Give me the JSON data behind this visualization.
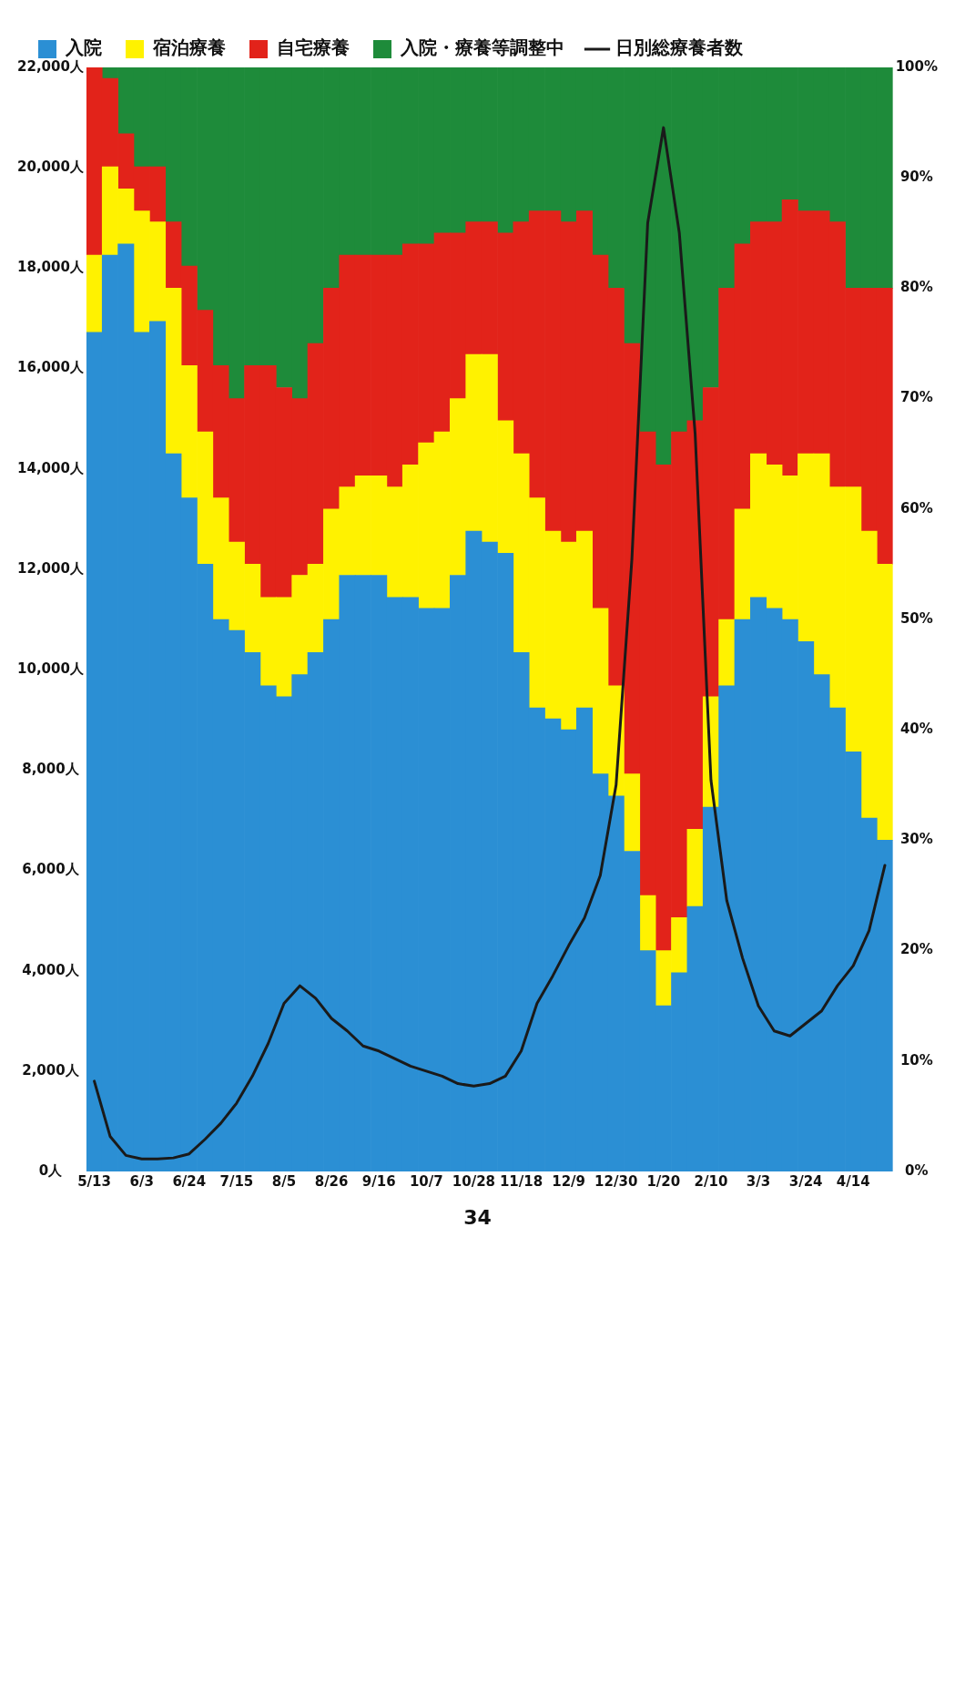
{
  "chart_data": {
    "type": "bar",
    "stacked": true,
    "legend": "top",
    "categories": [
      "5/13",
      null,
      null,
      "6/3",
      null,
      null,
      "6/24",
      null,
      null,
      "7/15",
      null,
      null,
      "8/5",
      null,
      null,
      "8/26",
      null,
      null,
      "9/16",
      null,
      null,
      "10/7",
      null,
      null,
      "10/28",
      null,
      null,
      "11/18",
      null,
      null,
      "12/9",
      null,
      null,
      "12/30",
      null,
      null,
      "1/20",
      null,
      null,
      "2/10",
      null,
      null,
      "3/3",
      null,
      null,
      "3/24",
      null,
      null,
      "4/14",
      null,
      null
    ],
    "ylim": [
      0,
      22000
    ],
    "yticks": [
      {
        "value": 0,
        "label": "0人"
      },
      {
        "value": 2000,
        "label": "2,000人"
      },
      {
        "value": 4000,
        "label": "4,000人"
      },
      {
        "value": 6000,
        "label": "6,000人"
      },
      {
        "value": 8000,
        "label": "8,000人"
      },
      {
        "value": 10000,
        "label": "10,000人"
      },
      {
        "value": 12000,
        "label": "12,000人"
      },
      {
        "value": 14000,
        "label": "14,000人"
      },
      {
        "value": 16000,
        "label": "16,000人"
      },
      {
        "value": 18000,
        "label": "18,000人"
      },
      {
        "value": 20000,
        "label": "20,000人"
      },
      {
        "value": 22000,
        "label": "22,000人"
      }
    ],
    "y2lim": [
      0,
      100
    ],
    "y2ticks": [
      {
        "value": 0,
        "label": "0%"
      },
      {
        "value": 10,
        "label": "10%"
      },
      {
        "value": 20,
        "label": "20%"
      },
      {
        "value": 30,
        "label": "30%"
      },
      {
        "value": 40,
        "label": "40%"
      },
      {
        "value": 50,
        "label": "50%"
      },
      {
        "value": 60,
        "label": "60%"
      },
      {
        "value": 70,
        "label": "70%"
      },
      {
        "value": 80,
        "label": "80%"
      },
      {
        "value": 90,
        "label": "90%"
      },
      {
        "value": 100,
        "label": "100%"
      }
    ],
    "series": [
      {
        "name": "入院",
        "color": "#2b8fd4",
        "axis": "y2",
        "values": [
          76,
          83,
          84,
          76,
          77,
          65,
          61,
          55,
          50,
          49,
          47,
          44,
          43,
          45,
          47,
          50,
          54,
          54,
          54,
          52,
          52,
          51,
          51,
          54,
          58,
          57,
          56,
          47,
          42,
          41,
          40,
          42,
          36,
          34,
          29,
          20,
          15,
          18,
          24,
          33,
          44,
          50,
          52,
          51,
          50,
          48,
          45,
          42,
          38,
          32,
          30
        ]
      },
      {
        "name": "宿泊療養",
        "color": "#fff200",
        "axis": "y2",
        "values": [
          7,
          8,
          5,
          11,
          9,
          15,
          12,
          12,
          11,
          8,
          8,
          8,
          9,
          9,
          8,
          10,
          8,
          9,
          9,
          10,
          12,
          15,
          16,
          16,
          16,
          17,
          12,
          18,
          19,
          17,
          17,
          16,
          15,
          10,
          7,
          5,
          5,
          5,
          7,
          10,
          6,
          10,
          13,
          13,
          13,
          17,
          20,
          20,
          24,
          26,
          25
        ]
      },
      {
        "name": "自宅療養",
        "color": "#e2231a",
        "axis": "y2",
        "values": [
          17,
          8,
          5,
          4,
          5,
          6,
          9,
          11,
          12,
          13,
          18,
          21,
          19,
          16,
          20,
          20,
          21,
          20,
          20,
          21,
          20,
          18,
          18,
          15,
          12,
          12,
          17,
          21,
          26,
          29,
          29,
          29,
          32,
          36,
          39,
          42,
          44,
          44,
          37,
          28,
          30,
          24,
          21,
          22,
          25,
          22,
          22,
          24,
          18,
          22,
          25
        ]
      },
      {
        "name": "入院・療養等調整中",
        "color": "#1e8b3a",
        "axis": "y2",
        "values": [
          0,
          1,
          6,
          9,
          9,
          14,
          18,
          22,
          27,
          30,
          27,
          27,
          29,
          30,
          25,
          20,
          17,
          17,
          17,
          17,
          16,
          16,
          15,
          15,
          14,
          14,
          15,
          14,
          13,
          13,
          14,
          13,
          17,
          20,
          25,
          33,
          36,
          33,
          32,
          29,
          20,
          16,
          14,
          14,
          12,
          13,
          13,
          14,
          20,
          20,
          20
        ]
      },
      {
        "name": "日別総療養者数",
        "type": "line",
        "color": "#1a1a1a",
        "values": [
          1800,
          700,
          320,
          250,
          250,
          270,
          350,
          640,
          960,
          1360,
          1900,
          2550,
          3350,
          3700,
          3450,
          3050,
          2800,
          2500,
          2400,
          2250,
          2100,
          2000,
          1900,
          1750,
          1700,
          1750,
          1900,
          2400,
          3350,
          3900,
          4500,
          5050,
          5900,
          7700,
          12200,
          18900,
          20800,
          18700,
          14700,
          7800,
          5400,
          4250,
          3300,
          2800,
          2700,
          2950,
          3200,
          3700,
          4100,
          4800,
          6100
        ]
      }
    ],
    "annotations": [
      "34"
    ]
  }
}
